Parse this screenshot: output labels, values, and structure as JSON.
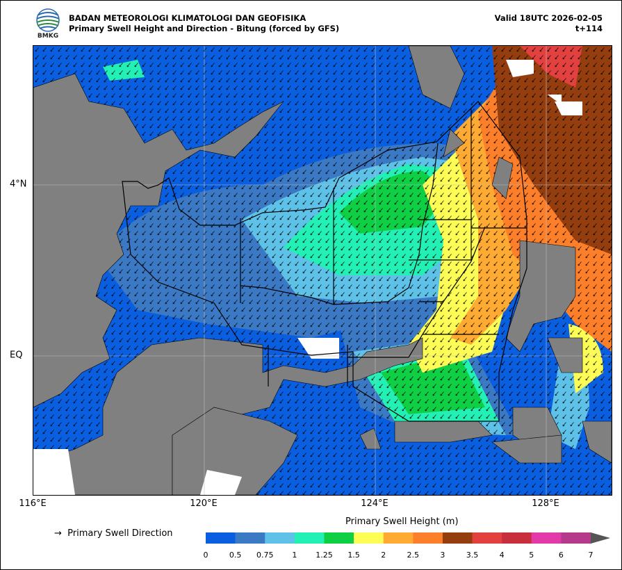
{
  "header": {
    "logo_text": "BMKG",
    "agency": "BADAN METEOROLOGI KLIMATOLOGI DAN GEOFISIKA",
    "product": "Primary Swell Height and Direction - Bitung (forced by GFS)",
    "valid": "Valid 18UTC 2026-02-05",
    "step": "t+114"
  },
  "axes": {
    "x_ticks": [
      "116°E",
      "120°E",
      "124°E",
      "128°E"
    ],
    "y_ticks": [
      "4°N",
      "EQ"
    ]
  },
  "legend": {
    "direction_label": "Primary Swell Direction",
    "colorbar_title": "Primary Swell Height (m)",
    "levels": [
      "0",
      "0.5",
      "0.75",
      "1",
      "1.25",
      "1.5",
      "2",
      "2.5",
      "3",
      "3.5",
      "4",
      "5",
      "6",
      "7"
    ],
    "colors": [
      "#0a5fe0",
      "#3b79c4",
      "#5ec1e8",
      "#23f0b4",
      "#0fcf45",
      "#fdfd55",
      "#ffaa33",
      "#fd7f2a",
      "#943e10",
      "#e34040",
      "#c7303a",
      "#e23aa8",
      "#b53a8c",
      "#555555"
    ]
  }
}
